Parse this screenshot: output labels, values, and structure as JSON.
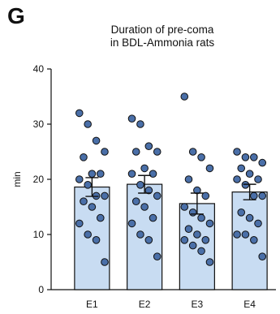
{
  "panel_label": "G",
  "chart_data": {
    "type": "bar",
    "title": [
      "Duration of pre-coma",
      "in BDL-Ammonia rats"
    ],
    "xlabel": "",
    "ylabel": "min",
    "ylim": [
      0,
      40
    ],
    "yticks": [
      0,
      10,
      20,
      30,
      40
    ],
    "categories": [
      "E1",
      "E2",
      "E3",
      "E4"
    ],
    "values": [
      18.6,
      19.1,
      15.6,
      17.7
    ],
    "sem": [
      1.7,
      1.6,
      1.9,
      1.4
    ],
    "points": [
      [
        32,
        30,
        27,
        25,
        24,
        21,
        21,
        20,
        19,
        17,
        17,
        16,
        15,
        13,
        12,
        10,
        9,
        5
      ],
      [
        31,
        30,
        26,
        25,
        25,
        22,
        21,
        21,
        19,
        18,
        17,
        16,
        15,
        13,
        12,
        10,
        9,
        6
      ],
      [
        35,
        25,
        24,
        22,
        20,
        18,
        17,
        15,
        14,
        13,
        12,
        11,
        10,
        9,
        9,
        8,
        7,
        5
      ],
      [
        25,
        24,
        24,
        23,
        22,
        21,
        20,
        20,
        19,
        17,
        17,
        14,
        13,
        12,
        10,
        10,
        9,
        6
      ]
    ],
    "bar_color": "#c8dcf2",
    "point_color": "#4a6fa8",
    "grid": false,
    "legend": "none"
  }
}
